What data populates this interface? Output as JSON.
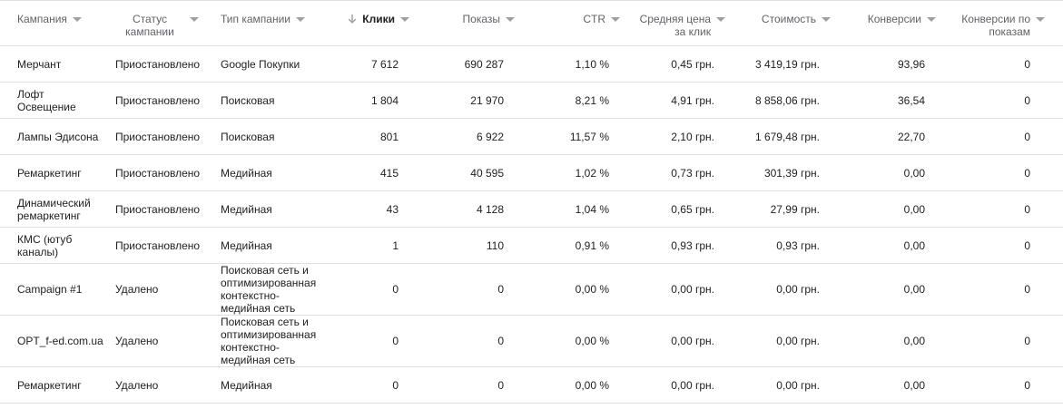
{
  "header": {
    "columns": [
      "Кампания",
      "Статус кампании",
      "Тип кампании",
      "Клики",
      "Показы",
      "CTR",
      "Средняя цена за клик",
      "Стоимость",
      "Конверсии",
      "Конверсии по показам"
    ]
  },
  "table": {
    "rows": [
      [
        "Мерчант",
        "Приостановлено",
        "Google Покупки",
        "7 612",
        "690 287",
        "1,10 %",
        "0,45 грн.",
        "3 419,19 грн.",
        "93,96",
        "0"
      ],
      [
        "Лофт Освещение",
        "Приостановлено",
        "Поисковая",
        "1 804",
        "21 970",
        "8,21 %",
        "4,91 грн.",
        "8 858,06 грн.",
        "36,54",
        "0"
      ],
      [
        "Лампы Эдисона",
        "Приостановлено",
        "Поисковая",
        "801",
        "6 922",
        "11,57 %",
        "2,10 грн.",
        "1 679,48 грн.",
        "22,70",
        "0"
      ],
      [
        "Ремаркетинг",
        "Приостановлено",
        "Медийная",
        "415",
        "40 595",
        "1,02 %",
        "0,73 грн.",
        "301,39 грн.",
        "0,00",
        "0"
      ],
      [
        "Динамический ремаркетинг",
        "Приостановлено",
        "Медийная",
        "43",
        "4 128",
        "1,04 %",
        "0,65 грн.",
        "27,99 грн.",
        "0,00",
        "0"
      ],
      [
        "КМС (ютуб каналы)",
        "Приостановлено",
        "Медийная",
        "1",
        "110",
        "0,91 %",
        "0,93 грн.",
        "0,93 грн.",
        "0,00",
        "0"
      ],
      [
        "Campaign #1",
        "Удалено",
        "Поисковая сеть и оптимизированная контекстно-медийная сеть",
        "0",
        "0",
        "0,00 %",
        "0,00 грн.",
        "0,00 грн.",
        "0,00",
        "0"
      ],
      [
        "OPT_f-ed.com.ua",
        "Удалено",
        "Поисковая сеть и оптимизированная контекстно-медийная сеть",
        "0",
        "0",
        "0,00 %",
        "0,00 грн.",
        "0,00 грн.",
        "0,00",
        "0"
      ],
      [
        "Ремаркетинг",
        "Удалено",
        "Медийная",
        "0",
        "0",
        "0,00 %",
        "0,00 грн.",
        "0,00 грн.",
        "0,00",
        "0"
      ]
    ]
  }
}
